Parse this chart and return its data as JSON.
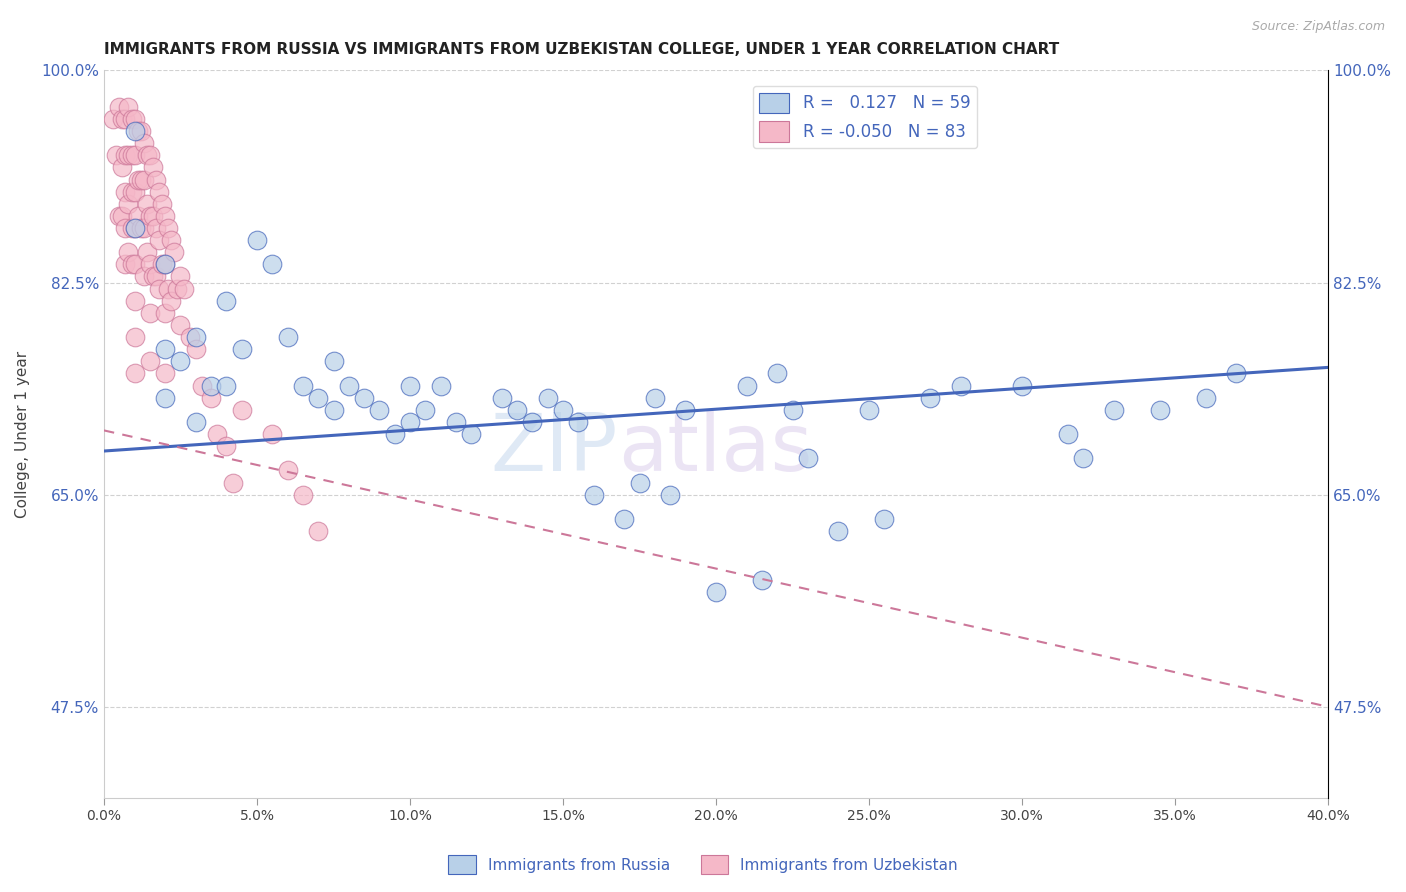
{
  "title": "IMMIGRANTS FROM RUSSIA VS IMMIGRANTS FROM UZBEKISTAN COLLEGE, UNDER 1 YEAR CORRELATION CHART",
  "source": "Source: ZipAtlas.com",
  "ylabel": "College, Under 1 year",
  "xlim": [
    0.0,
    0.4
  ],
  "ylim": [
    0.4,
    1.0
  ],
  "ytick_labels": [
    "100.0%",
    "82.5%",
    "65.0%",
    "47.5%"
  ],
  "ytick_values": [
    1.0,
    0.825,
    0.65,
    0.475
  ],
  "xtick_labels": [
    "0.0%",
    "5.0%",
    "10.0%",
    "15.0%",
    "20.0%",
    "25.0%",
    "30.0%",
    "35.0%",
    "40.0%"
  ],
  "xtick_values": [
    0.0,
    0.05,
    0.1,
    0.15,
    0.2,
    0.25,
    0.3,
    0.35,
    0.4
  ],
  "grid_color": "#cccccc",
  "legend_R1": "0.127",
  "legend_N1": "59",
  "legend_R2": "-0.050",
  "legend_N2": "83",
  "color_russia": "#b8d0e8",
  "color_uzbekistan": "#f5b8c8",
  "line_color_russia": "#4466bb",
  "line_color_uzbekistan": "#cc7799",
  "watermark_1": "ZIP",
  "watermark_2": "atlas",
  "russia_x": [
    0.01,
    0.01,
    0.02,
    0.02,
    0.02,
    0.025,
    0.03,
    0.03,
    0.035,
    0.04,
    0.04,
    0.045,
    0.05,
    0.055,
    0.06,
    0.065,
    0.07,
    0.075,
    0.075,
    0.08,
    0.085,
    0.09,
    0.095,
    0.1,
    0.1,
    0.105,
    0.11,
    0.115,
    0.12,
    0.13,
    0.135,
    0.14,
    0.145,
    0.15,
    0.155,
    0.16,
    0.17,
    0.175,
    0.18,
    0.185,
    0.19,
    0.2,
    0.21,
    0.215,
    0.22,
    0.225,
    0.23,
    0.24,
    0.25,
    0.255,
    0.27,
    0.28,
    0.3,
    0.315,
    0.32,
    0.33,
    0.345,
    0.36,
    0.37
  ],
  "russia_y": [
    0.95,
    0.87,
    0.84,
    0.77,
    0.73,
    0.76,
    0.78,
    0.71,
    0.74,
    0.74,
    0.81,
    0.77,
    0.86,
    0.84,
    0.78,
    0.74,
    0.73,
    0.76,
    0.72,
    0.74,
    0.73,
    0.72,
    0.7,
    0.74,
    0.71,
    0.72,
    0.74,
    0.71,
    0.7,
    0.73,
    0.72,
    0.71,
    0.73,
    0.72,
    0.71,
    0.65,
    0.63,
    0.66,
    0.73,
    0.65,
    0.72,
    0.57,
    0.74,
    0.58,
    0.75,
    0.72,
    0.68,
    0.62,
    0.72,
    0.63,
    0.73,
    0.74,
    0.74,
    0.7,
    0.68,
    0.72,
    0.72,
    0.73,
    0.75
  ],
  "uzbekistan_x": [
    0.003,
    0.004,
    0.005,
    0.005,
    0.006,
    0.006,
    0.006,
    0.007,
    0.007,
    0.007,
    0.007,
    0.007,
    0.008,
    0.008,
    0.008,
    0.008,
    0.009,
    0.009,
    0.009,
    0.009,
    0.009,
    0.01,
    0.01,
    0.01,
    0.01,
    0.01,
    0.01,
    0.01,
    0.01,
    0.011,
    0.011,
    0.011,
    0.012,
    0.012,
    0.012,
    0.013,
    0.013,
    0.013,
    0.013,
    0.014,
    0.014,
    0.014,
    0.015,
    0.015,
    0.015,
    0.015,
    0.015,
    0.016,
    0.016,
    0.016,
    0.017,
    0.017,
    0.017,
    0.018,
    0.018,
    0.018,
    0.019,
    0.019,
    0.02,
    0.02,
    0.02,
    0.02,
    0.021,
    0.021,
    0.022,
    0.022,
    0.023,
    0.024,
    0.025,
    0.025,
    0.026,
    0.028,
    0.03,
    0.032,
    0.035,
    0.037,
    0.04,
    0.042,
    0.045,
    0.055,
    0.06,
    0.065,
    0.07
  ],
  "uzbekistan_y": [
    0.96,
    0.93,
    0.97,
    0.88,
    0.96,
    0.92,
    0.88,
    0.96,
    0.93,
    0.9,
    0.87,
    0.84,
    0.97,
    0.93,
    0.89,
    0.85,
    0.96,
    0.93,
    0.9,
    0.87,
    0.84,
    0.96,
    0.93,
    0.9,
    0.87,
    0.84,
    0.81,
    0.78,
    0.75,
    0.95,
    0.91,
    0.88,
    0.95,
    0.91,
    0.87,
    0.94,
    0.91,
    0.87,
    0.83,
    0.93,
    0.89,
    0.85,
    0.93,
    0.88,
    0.84,
    0.8,
    0.76,
    0.92,
    0.88,
    0.83,
    0.91,
    0.87,
    0.83,
    0.9,
    0.86,
    0.82,
    0.89,
    0.84,
    0.88,
    0.84,
    0.8,
    0.75,
    0.87,
    0.82,
    0.86,
    0.81,
    0.85,
    0.82,
    0.83,
    0.79,
    0.82,
    0.78,
    0.77,
    0.74,
    0.73,
    0.7,
    0.69,
    0.66,
    0.72,
    0.7,
    0.67,
    0.65,
    0.62
  ],
  "russia_trend_x": [
    0.0,
    0.4
  ],
  "russia_trend_y": [
    0.686,
    0.755
  ],
  "uzbekistan_trend_x": [
    0.0,
    0.4
  ],
  "uzbekistan_trend_y": [
    0.703,
    0.475
  ]
}
